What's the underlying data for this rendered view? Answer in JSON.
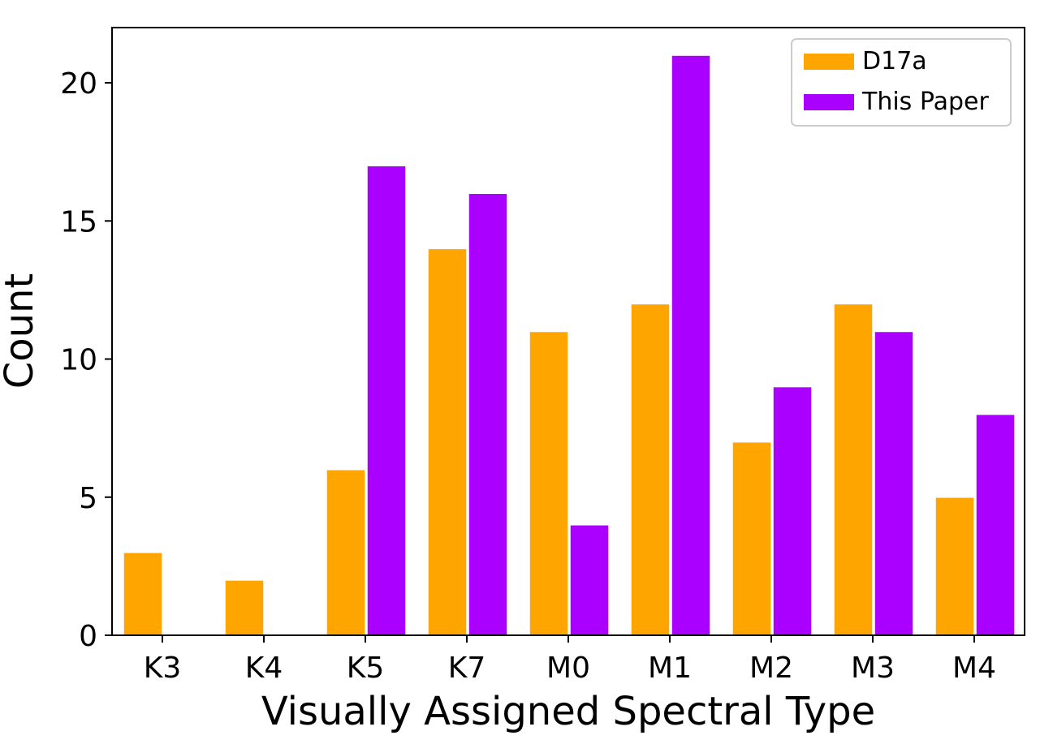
{
  "chart_data": {
    "type": "bar",
    "xlabel": "Visually Assigned Spectral Type",
    "ylabel": "Count",
    "categories": [
      "K3",
      "K4",
      "K5",
      "K7",
      "M0",
      "M1",
      "M2",
      "M3",
      "M4"
    ],
    "series": [
      {
        "name": "D17a",
        "color": "#ffa500",
        "values": [
          3,
          2,
          6,
          14,
          11,
          12,
          7,
          12,
          5
        ]
      },
      {
        "name": "This Paper",
        "color": "#aa00ff",
        "values": [
          0,
          0,
          17,
          16,
          4,
          21,
          9,
          11,
          8
        ]
      }
    ],
    "yticks": [
      0,
      5,
      10,
      15,
      20
    ],
    "ylim": [
      0,
      22
    ],
    "grid": false,
    "legend_position": "top-right"
  }
}
